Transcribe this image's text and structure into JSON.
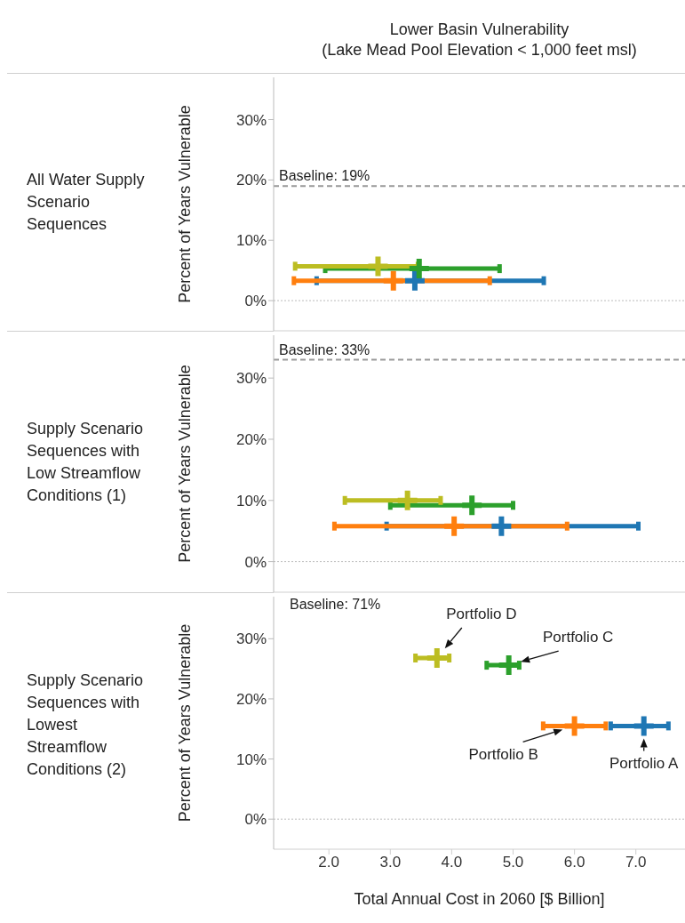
{
  "chart_data": [
    {
      "type": "scatter",
      "title": "Lower Basin Vulnerability\n(Lake Mead Pool Elevation < 1,000 feet msl)",
      "subtitle": "All Water Supply Scenario Sequences",
      "ylabel": "Percent of Years Vulnerable",
      "marker": "cross",
      "tick_labels": "y",
      "xlim": [
        1.1,
        7.8
      ],
      "ylim": [
        -5,
        37
      ],
      "yticks": [
        {
          "value": 0,
          "label": "0%"
        },
        {
          "value": 10,
          "label": "10%"
        },
        {
          "value": 20,
          "label": "20%"
        },
        {
          "value": 30,
          "label": "30%"
        }
      ],
      "ref_lines": [
        {
          "axis": "y",
          "value": 19,
          "label": "Baseline: 19%",
          "color": "#999999",
          "line_style": "dashed"
        },
        {
          "axis": "y",
          "value": 0,
          "color": "#bbbbbb",
          "line_style": "dotted"
        }
      ],
      "series": [
        {
          "color": "#1f77b4",
          "x": [
            3.4
          ],
          "values": [
            3.3
          ],
          "xerrors": [
            [
              1.8,
              5.5
            ]
          ]
        },
        {
          "color": "#ff7f0e",
          "x": [
            3.05
          ],
          "values": [
            3.3
          ],
          "xerrors": [
            [
              1.43,
              4.62
            ]
          ]
        },
        {
          "color": "#2ca02c",
          "x": [
            3.47
          ],
          "values": [
            5.3
          ],
          "xerrors": [
            [
              1.94,
              4.78
            ]
          ]
        },
        {
          "color": "#bcbd22",
          "x": [
            2.8
          ],
          "values": [
            5.7
          ],
          "xerrors": [
            [
              1.45,
              3.45
            ]
          ]
        }
      ]
    },
    {
      "type": "scatter",
      "subtitle": "Supply Scenario Sequences with Low Streamflow Conditions (1)",
      "ylabel": "Percent of Years Vulnerable",
      "marker": "cross",
      "tick_labels": "y",
      "xlim": [
        1.1,
        7.8
      ],
      "ylim": [
        -5,
        37
      ],
      "yticks": [
        {
          "value": 0,
          "label": "0%"
        },
        {
          "value": 10,
          "label": "10%"
        },
        {
          "value": 20,
          "label": "20%"
        },
        {
          "value": 30,
          "label": "30%"
        }
      ],
      "ref_lines": [
        {
          "axis": "y",
          "value": 33,
          "label": "Baseline: 33%",
          "color": "#999999",
          "line_style": "dashed"
        },
        {
          "axis": "y",
          "value": 0,
          "color": "#bbbbbb",
          "line_style": "dotted"
        }
      ],
      "series": [
        {
          "color": "#1f77b4",
          "x": [
            4.81
          ],
          "values": [
            5.8
          ],
          "xerrors": [
            [
              2.94,
              7.04
            ]
          ]
        },
        {
          "color": "#ff7f0e",
          "x": [
            4.04
          ],
          "values": [
            5.8
          ],
          "xerrors": [
            [
              2.09,
              5.88
            ]
          ]
        },
        {
          "color": "#2ca02c",
          "x": [
            4.33
          ],
          "values": [
            9.2
          ],
          "xerrors": [
            [
              3.0,
              5.0
            ]
          ]
        },
        {
          "color": "#bcbd22",
          "x": [
            3.28
          ],
          "values": [
            10.0
          ],
          "xerrors": [
            [
              2.26,
              3.82
            ]
          ]
        }
      ]
    },
    {
      "type": "scatter",
      "subtitle": "Supply Scenario Sequences with Lowest Streamflow Conditions (2)",
      "ylabel": "Percent of Years Vulnerable",
      "xlabel": "Total Annual Cost in 2060 [$ Billion]",
      "marker": "cross",
      "xlim": [
        1.1,
        7.8
      ],
      "xticks": [
        {
          "value": 2,
          "label": "2.0"
        },
        {
          "value": 3,
          "label": "3.0"
        },
        {
          "value": 4,
          "label": "4.0"
        },
        {
          "value": 5,
          "label": "5.0"
        },
        {
          "value": 6,
          "label": "6.0"
        },
        {
          "value": 7,
          "label": "7.0"
        }
      ],
      "ylim": [
        -5,
        37
      ],
      "yticks": [
        {
          "value": 0,
          "label": "0%"
        },
        {
          "value": 10,
          "label": "10%"
        },
        {
          "value": 20,
          "label": "20%"
        },
        {
          "value": 30,
          "label": "30%"
        }
      ],
      "annotations": [
        "Baseline: 71%"
      ],
      "ref_lines": [
        {
          "axis": "y",
          "value": 0,
          "color": "#bbbbbb",
          "line_style": "dotted"
        }
      ],
      "series": [
        {
          "name": "Portfolio A",
          "color": "#1f77b4",
          "x": [
            7.13
          ],
          "values": [
            15.5
          ],
          "xerrors": [
            [
              6.59,
              7.53
            ]
          ]
        },
        {
          "name": "Portfolio B",
          "color": "#ff7f0e",
          "x": [
            6.0
          ],
          "values": [
            15.5
          ],
          "xerrors": [
            [
              5.49,
              6.51
            ]
          ]
        },
        {
          "name": "Portfolio C",
          "color": "#2ca02c",
          "x": [
            4.93
          ],
          "values": [
            25.6
          ],
          "xerrors": [
            [
              4.57,
              5.1
            ]
          ]
        },
        {
          "name": "Portfolio D",
          "color": "#bcbd22",
          "x": [
            3.76
          ],
          "values": [
            26.8
          ],
          "xerrors": [
            [
              3.41,
              3.96
            ]
          ]
        }
      ]
    }
  ]
}
